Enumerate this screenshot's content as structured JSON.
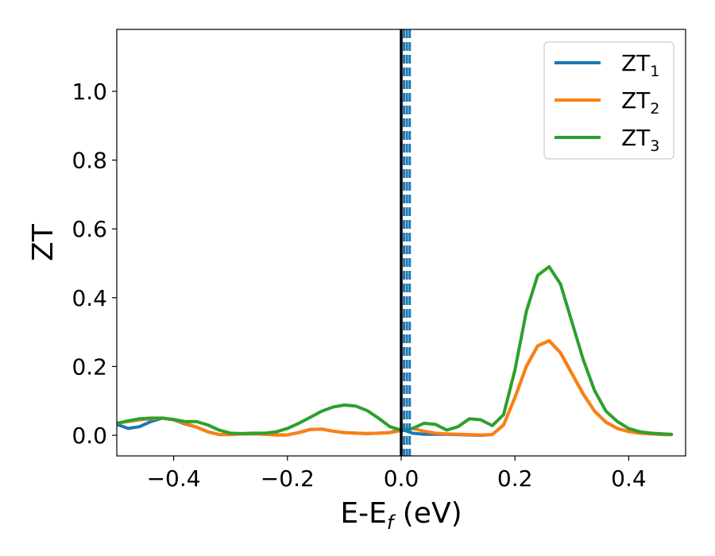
{
  "chart_data": {
    "type": "line",
    "xlabel": "E-E",
    "xlabel_sub": "f",
    "xlabel_unit": " (eV)",
    "ylabel": "ZT",
    "xlim": [
      -0.5,
      0.5
    ],
    "ylim": [
      -0.06,
      1.18
    ],
    "grid": false,
    "legend_position": "top-right",
    "x_ticks": [
      -0.4,
      -0.2,
      0.0,
      0.2,
      0.4
    ],
    "x_tick_labels": [
      "−0.4",
      "−0.2",
      "0.0",
      "0.2",
      "0.4"
    ],
    "y_ticks": [
      0.0,
      0.2,
      0.4,
      0.6,
      0.8,
      1.0
    ],
    "y_tick_labels": [
      "0.0",
      "0.2",
      "0.4",
      "0.6",
      "0.8",
      "1.0"
    ],
    "vertical_lines": [
      {
        "x": 0.0,
        "color": "#000000",
        "style": "solid"
      },
      {
        "x": 0.005,
        "color": "#1f77b4",
        "style": "dashed"
      },
      {
        "x": 0.01,
        "color": "#1f77b4",
        "style": "dashed"
      },
      {
        "x": 0.015,
        "color": "#1f77b4",
        "style": "dashed"
      }
    ],
    "series": [
      {
        "name": "ZT",
        "sub": "1",
        "color": "#1f77b4",
        "x": [
          -0.5,
          -0.48,
          -0.46,
          -0.44,
          -0.42,
          -0.4,
          -0.38,
          -0.36,
          -0.34,
          -0.32,
          -0.3,
          -0.28,
          -0.26,
          -0.24,
          -0.22,
          -0.2,
          -0.18,
          -0.16,
          -0.14,
          -0.12,
          -0.1,
          -0.08,
          -0.06,
          -0.04,
          -0.02,
          0.0,
          0.02,
          0.04,
          0.06,
          0.08,
          0.1,
          0.12,
          0.14,
          0.16,
          0.18,
          0.2,
          0.22,
          0.24,
          0.26,
          0.28,
          0.3,
          0.32,
          0.34,
          0.36,
          0.38,
          0.4,
          0.42,
          0.44,
          0.46,
          0.475
        ],
        "y": [
          0.032,
          0.02,
          0.025,
          0.04,
          0.05,
          0.045,
          0.033,
          0.024,
          0.01,
          0.002,
          0.002,
          0.004,
          0.004,
          0.003,
          0.001,
          0.001,
          0.008,
          0.017,
          0.018,
          0.012,
          0.008,
          0.006,
          0.005,
          0.006,
          0.008,
          0.018,
          0.006,
          0.003,
          0.003,
          0.003,
          0.002,
          0.001,
          0.0,
          0.002,
          0.03,
          0.11,
          0.2,
          0.26,
          0.275,
          0.24,
          0.18,
          0.12,
          0.07,
          0.038,
          0.02,
          0.011,
          0.006,
          0.004,
          0.002,
          0.002
        ]
      },
      {
        "name": "ZT",
        "sub": "2",
        "color": "#ff7f0e",
        "x": [
          -0.5,
          -0.48,
          -0.46,
          -0.44,
          -0.42,
          -0.4,
          -0.38,
          -0.36,
          -0.34,
          -0.32,
          -0.3,
          -0.28,
          -0.26,
          -0.24,
          -0.22,
          -0.2,
          -0.18,
          -0.16,
          -0.14,
          -0.12,
          -0.1,
          -0.08,
          -0.06,
          -0.04,
          -0.02,
          0.0,
          0.02,
          0.04,
          0.06,
          0.08,
          0.1,
          0.12,
          0.14,
          0.16,
          0.18,
          0.2,
          0.22,
          0.24,
          0.26,
          0.28,
          0.3,
          0.32,
          0.34,
          0.36,
          0.38,
          0.4,
          0.42,
          0.44,
          0.46,
          0.475
        ],
        "y": [
          0.035,
          0.04,
          0.045,
          0.048,
          0.05,
          0.045,
          0.035,
          0.024,
          0.01,
          0.002,
          0.002,
          0.004,
          0.004,
          0.003,
          0.001,
          0.001,
          0.008,
          0.017,
          0.018,
          0.012,
          0.008,
          0.006,
          0.005,
          0.006,
          0.008,
          0.014,
          0.02,
          0.012,
          0.006,
          0.004,
          0.003,
          0.002,
          0.001,
          0.002,
          0.03,
          0.11,
          0.2,
          0.26,
          0.275,
          0.24,
          0.18,
          0.12,
          0.07,
          0.038,
          0.02,
          0.011,
          0.006,
          0.004,
          0.002,
          0.002
        ]
      },
      {
        "name": "ZT",
        "sub": "3",
        "color": "#2ca02c",
        "x": [
          -0.5,
          -0.48,
          -0.46,
          -0.44,
          -0.42,
          -0.4,
          -0.38,
          -0.36,
          -0.34,
          -0.32,
          -0.3,
          -0.28,
          -0.26,
          -0.24,
          -0.22,
          -0.2,
          -0.18,
          -0.16,
          -0.14,
          -0.12,
          -0.1,
          -0.08,
          -0.06,
          -0.04,
          -0.02,
          0.0,
          0.02,
          0.04,
          0.06,
          0.08,
          0.1,
          0.12,
          0.14,
          0.16,
          0.18,
          0.2,
          0.22,
          0.24,
          0.26,
          0.28,
          0.3,
          0.32,
          0.34,
          0.36,
          0.38,
          0.4,
          0.42,
          0.44,
          0.46,
          0.475
        ],
        "y": [
          0.035,
          0.042,
          0.048,
          0.05,
          0.05,
          0.046,
          0.04,
          0.04,
          0.03,
          0.015,
          0.006,
          0.005,
          0.006,
          0.006,
          0.01,
          0.02,
          0.035,
          0.052,
          0.07,
          0.082,
          0.088,
          0.085,
          0.072,
          0.05,
          0.025,
          0.015,
          0.02,
          0.035,
          0.032,
          0.015,
          0.025,
          0.048,
          0.045,
          0.028,
          0.06,
          0.19,
          0.36,
          0.465,
          0.49,
          0.44,
          0.33,
          0.22,
          0.13,
          0.07,
          0.04,
          0.02,
          0.01,
          0.006,
          0.004,
          0.003
        ]
      }
    ]
  }
}
